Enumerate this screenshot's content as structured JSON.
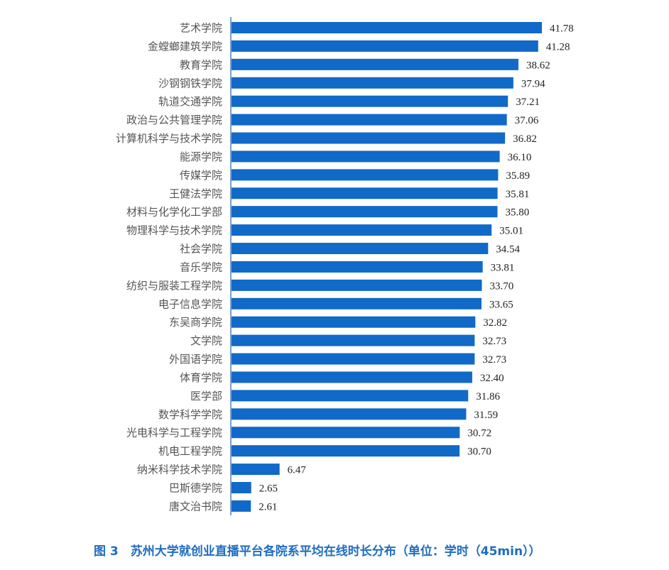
{
  "chart_data": {
    "type": "bar",
    "orientation": "horizontal",
    "title": "图 3　苏州大学就创业直播平台各院系平均在线时长分布（单位：学时（45min））",
    "xlabel": "",
    "ylabel": "",
    "xlim": [
      0,
      45
    ],
    "grid": false,
    "bar_color": "#1169c8",
    "categories": [
      "艺术学院",
      "金螳螂建筑学院",
      "教育学院",
      "沙钢钢铁学院",
      "轨道交通学院",
      "政治与公共管理学院",
      "计算机科学与技术学院",
      "能源学院",
      "传媒学院",
      "王健法学院",
      "材料与化学化工学部",
      "物理科学与技术学院",
      "社会学院",
      "音乐学院",
      "纺织与服装工程学院",
      "电子信息学院",
      "东吴商学院",
      "文学院",
      "外国语学院",
      "体育学院",
      "医学部",
      "数学科学学院",
      "光电科学与工程学院",
      "机电工程学院",
      "纳米科学技术学院",
      "巴斯德学院",
      "唐文治书院"
    ],
    "values": [
      41.78,
      41.28,
      38.62,
      37.94,
      37.21,
      37.06,
      36.82,
      36.1,
      35.89,
      35.81,
      35.8,
      35.01,
      34.54,
      33.81,
      33.7,
      33.65,
      32.82,
      32.73,
      32.73,
      32.4,
      31.86,
      31.59,
      30.72,
      30.7,
      6.47,
      2.65,
      2.61
    ],
    "labels": [
      "41.78",
      "41.28",
      "38.62",
      "37.94",
      "37.21",
      "37.06",
      "36.82",
      "36.10",
      "35.89",
      "35.81",
      "35.80",
      "35.01",
      "34.54",
      "33.81",
      "33.70",
      "33.65",
      "32.82",
      "32.73",
      "32.73",
      "32.40",
      "31.86",
      "31.59",
      "30.72",
      "30.70",
      "6.47",
      "2.65",
      "2.61"
    ]
  }
}
